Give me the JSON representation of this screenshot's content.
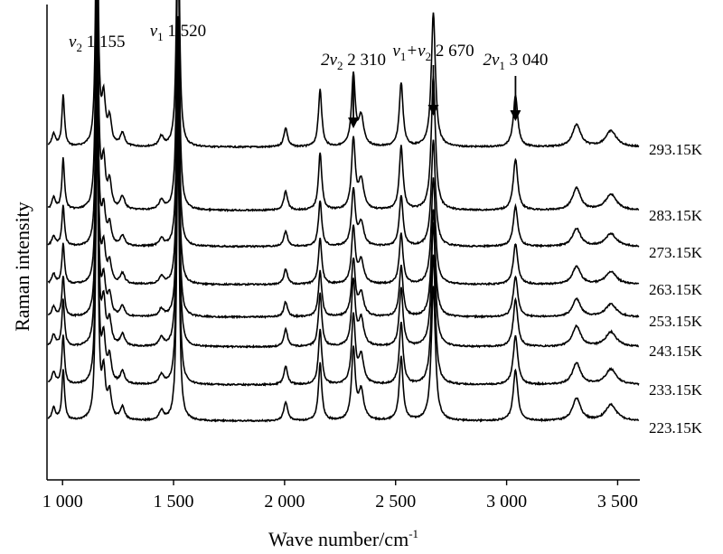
{
  "chart_data": {
    "type": "line",
    "title": "",
    "xlabel": "Wave number/cm",
    "xlabel_sup": "-1",
    "ylabel": "Raman intensity",
    "xlim": [
      930,
      3600
    ],
    "xticks": [
      1000,
      1500,
      2000,
      2500,
      3000,
      3500
    ],
    "xtick_labels": [
      "1 000",
      "1 500",
      "2 000",
      "2 500",
      "3 000",
      "3 500"
    ],
    "y_ticks_shown": false,
    "grid": false,
    "line_color": "#000000",
    "peak_labels": [
      {
        "pre": "v",
        "sub": "2",
        "post": " 1 155",
        "x": 1155
      },
      {
        "pre": "v",
        "sub": "1",
        "post": " 1 520",
        "x": 1520
      },
      {
        "pre": "2v",
        "sub": "2",
        "post": " 2 310",
        "x": 2310
      },
      {
        "pre": "v",
        "sub": "1",
        "mid": "+v",
        "sub2": "2",
        "post": " 2 670",
        "x": 2670
      },
      {
        "pre": "2v",
        "sub": "1",
        "post": " 3 040",
        "x": 3040
      }
    ],
    "peaks": [
      {
        "x": 1155,
        "height": 1.0,
        "width": 6
      },
      {
        "x": 1520,
        "height": 0.9,
        "width": 7
      },
      {
        "x": 1003,
        "height": 0.16,
        "width": 7
      },
      {
        "x": 1185,
        "height": 0.14,
        "width": 10
      },
      {
        "x": 1212,
        "height": 0.08,
        "width": 10
      },
      {
        "x": 1270,
        "height": 0.04,
        "width": 12
      },
      {
        "x": 960,
        "height": 0.04,
        "width": 10
      },
      {
        "x": 1445,
        "height": 0.03,
        "width": 12
      },
      {
        "x": 2005,
        "height": 0.06,
        "width": 10
      },
      {
        "x": 2160,
        "height": 0.18,
        "width": 9
      },
      {
        "x": 2310,
        "height": 0.22,
        "width": 10
      },
      {
        "x": 2345,
        "height": 0.09,
        "width": 14
      },
      {
        "x": 2525,
        "height": 0.2,
        "width": 10
      },
      {
        "x": 2670,
        "height": 0.42,
        "width": 11
      },
      {
        "x": 3040,
        "height": 0.16,
        "width": 12
      },
      {
        "x": 3315,
        "height": 0.07,
        "width": 22
      },
      {
        "x": 3470,
        "height": 0.05,
        "width": 30
      }
    ],
    "series": [
      {
        "name": "293.15K",
        "offset": 368,
        "scale": 0.78,
        "label_offset": 4
      },
      {
        "name": "283.15K",
        "offset": 298,
        "scale": 0.78,
        "label_offset": 7
      },
      {
        "name": "273.15K",
        "offset": 258,
        "scale": 0.62,
        "label_offset": 8
      },
      {
        "name": "263.15K",
        "offset": 216,
        "scale": 0.62,
        "label_offset": 7
      },
      {
        "name": "253.15K",
        "offset": 180,
        "scale": 0.62,
        "label_offset": 6
      },
      {
        "name": "243.15K",
        "offset": 147,
        "scale": 0.72,
        "label_offset": 6
      },
      {
        "name": "233.15K",
        "offset": 105,
        "scale": 0.75,
        "label_offset": 7
      },
      {
        "name": "223.15K",
        "offset": 65,
        "scale": 0.78,
        "label_offset": 9
      }
    ]
  }
}
